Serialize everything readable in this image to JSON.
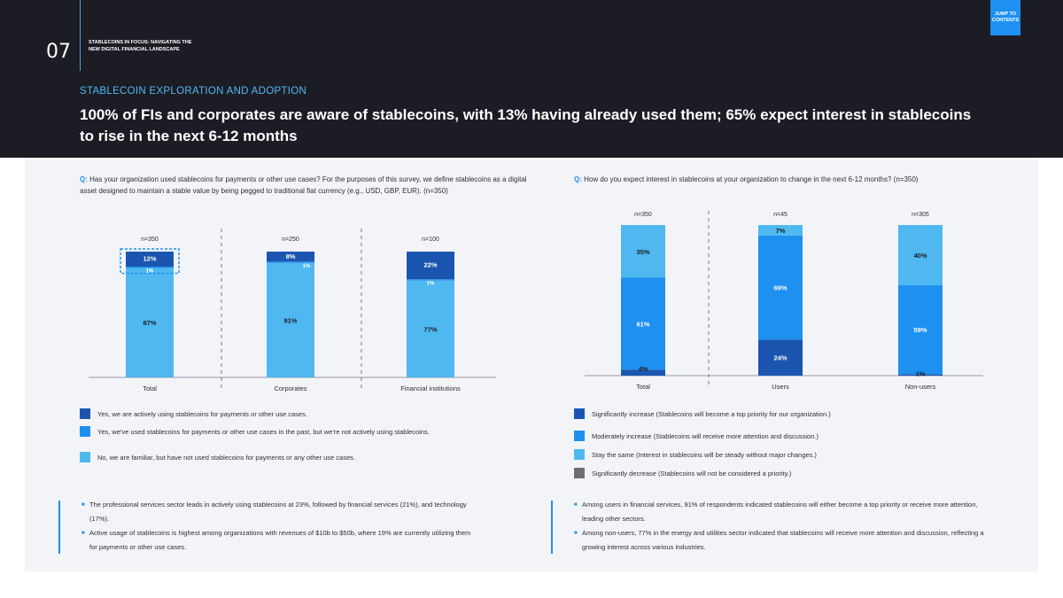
{
  "header": {
    "page_number": "07",
    "doc_title": "STABLECOINS IN FOCUS: NAVIGATING THE NEW DIGITAL FINANCIAL LANDSCAPE",
    "jump_button": "JUMP TO CONTENTS",
    "eyebrow": "STABLECOIN EXPLORATION AND ADOPTION",
    "headline": "100% of FIs and corporates are aware of stablecoins, with 13% having already used them; 65% expect interest in stablecoins to rise in the next 6-12 months"
  },
  "colors": {
    "dark": "#1a56b0",
    "mid": "#1e90f0",
    "light": "#4fb8f0",
    "grey": "#6e6e78"
  },
  "left": {
    "q_label": "Q:",
    "question": "Has your organization used stablecoins for payments or other use cases? For the purposes of this survey, we define stablecoins as a digital asset designed to maintain a stable value by being pegged to traditional fiat currency (e.g., USD, GBP, EUR). (n=350)",
    "legend": [
      "Yes, we are actively using stablecoins for payments or other use cases.",
      "Yes, we've used stablecoins for payments or other use cases in the past, but we're not actively using stablecoins.",
      "No, we are familiar, but have not used stablecoins for payments or any other use cases."
    ],
    "notes": [
      "The professional services sector leads in actively using stablecoins at 23%, followed by financial services (21%), and technology (17%).",
      "Active usage of stablecoins is highest among organizations with revenues of $10b to $50b, where 19% are currently utilizing them for payments or other use cases."
    ]
  },
  "right": {
    "q_label": "Q:",
    "question": "How do you expect interest in stablecoins at your organization to change in the next 6-12 months? (n=350)",
    "legend": [
      "Significantly increase (Stablecoins will become a top priority for our organization.)",
      "Moderately increase (Stablecoins will receive more attention and discussion.)",
      "Stay the same (Interest in stablecoins will be steady without major changes.)",
      "Significantly decrease (Stablecoins will not be considered a priority.)"
    ],
    "notes": [
      "Among users in financial services, 91% of respondents indicated stablecoins will either become a top priority or receive more attention, leading other sectors.",
      "Among non-users, 77% in the energy and utilities sector indicated that stablecoins will receive more attention and discussion, reflecting a growing interest across various industries."
    ]
  },
  "chart_data": [
    {
      "type": "bar",
      "stacked": true,
      "title": "Has your organization used stablecoins for payments or other use cases?",
      "categories": [
        "Total",
        "Corporates",
        "Financial institutions"
      ],
      "sample_sizes": [
        "n=350",
        "n=250",
        "n=100"
      ],
      "series": [
        {
          "name": "No, we are familiar, but have not used stablecoins",
          "values": [
            87,
            91,
            77
          ],
          "labels": [
            "87%",
            "91%",
            "77%"
          ]
        },
        {
          "name": "Yes, used in the past, not actively",
          "values": [
            1,
            1,
            1
          ],
          "labels": [
            "1%",
            "1%",
            "1%"
          ]
        },
        {
          "name": "Yes, actively using",
          "values": [
            12,
            8,
            22
          ],
          "labels": [
            "12%",
            "8%",
            "22%"
          ]
        }
      ],
      "ylim": [
        0,
        100
      ]
    },
    {
      "type": "bar",
      "stacked": true,
      "title": "How do you expect interest in stablecoins at your organization to change in the next 6-12 months?",
      "categories": [
        "Total",
        "Users",
        "Non-users"
      ],
      "sample_sizes": [
        "n=350",
        "n=45",
        "n=305"
      ],
      "series": [
        {
          "name": "Significantly increase",
          "values": [
            4,
            24,
            1
          ],
          "labels": [
            "4%",
            "24%",
            "1%"
          ]
        },
        {
          "name": "Moderately increase",
          "values": [
            61,
            69,
            59
          ],
          "labels": [
            "61%",
            "69%",
            "59%"
          ]
        },
        {
          "name": "Stay the same",
          "values": [
            35,
            7,
            40
          ],
          "labels": [
            "35%",
            "7%",
            "40%"
          ]
        }
      ],
      "ylim": [
        0,
        100
      ]
    }
  ]
}
